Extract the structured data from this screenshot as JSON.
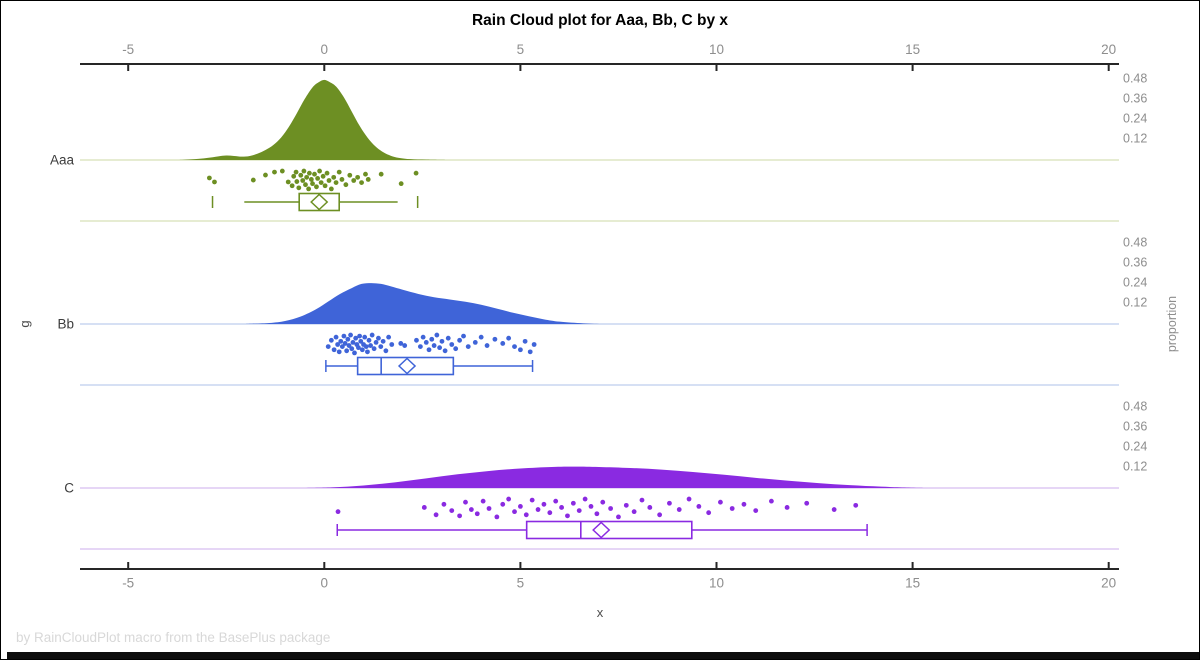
{
  "header": {
    "title": "Rain Cloud plot for Aaa, Bb, C by x"
  },
  "footer": {
    "credit": "by RainCloudPlot macro from the BasePlus package"
  },
  "axes": {
    "x": {
      "label": "x",
      "ticks": [
        "-5",
        "0",
        "5",
        "10",
        "15",
        "20"
      ],
      "tick_values": [
        -5,
        0,
        5,
        10,
        15,
        20
      ],
      "range": [
        -6.2,
        20.3
      ]
    },
    "y": {
      "label": "g"
    },
    "y2": {
      "label": "proportion",
      "ticks": [
        "0.48",
        "0.36",
        "0.24",
        "0.12"
      ],
      "tick_values": [
        0.48,
        0.36,
        0.24,
        0.12
      ]
    }
  },
  "chart_data": {
    "type": "raincloud",
    "title": "Rain Cloud plot for Aaa, Bb, C by x",
    "xlabel": "x",
    "ylabel": "g",
    "y2label": "proportion",
    "x_range": [
      -6.2,
      20.3
    ],
    "proportion_ticks": [
      0.48,
      0.36,
      0.24,
      0.12
    ],
    "groups": [
      {
        "label": "Aaa",
        "color": "#6d8f23",
        "light_color": "#dde6c4",
        "density": [
          [
            -3.7,
            0
          ],
          [
            -3.3,
            0.005
          ],
          [
            -3.0,
            0.012
          ],
          [
            -2.7,
            0.022
          ],
          [
            -2.5,
            0.027
          ],
          [
            -2.3,
            0.024
          ],
          [
            -2.1,
            0.02
          ],
          [
            -1.9,
            0.024
          ],
          [
            -1.7,
            0.038
          ],
          [
            -1.5,
            0.06
          ],
          [
            -1.3,
            0.09
          ],
          [
            -1.1,
            0.135
          ],
          [
            -0.9,
            0.2
          ],
          [
            -0.7,
            0.28
          ],
          [
            -0.5,
            0.365
          ],
          [
            -0.3,
            0.435
          ],
          [
            -0.15,
            0.465
          ],
          [
            0,
            0.48
          ],
          [
            0.15,
            0.465
          ],
          [
            0.3,
            0.44
          ],
          [
            0.5,
            0.375
          ],
          [
            0.7,
            0.29
          ],
          [
            0.9,
            0.205
          ],
          [
            1.1,
            0.135
          ],
          [
            1.3,
            0.082
          ],
          [
            1.5,
            0.047
          ],
          [
            1.7,
            0.025
          ],
          [
            1.9,
            0.013
          ],
          [
            2.2,
            0.005
          ],
          [
            2.6,
            0.002
          ],
          [
            3.1,
            0
          ]
        ],
        "points": [
          [
            -2.93,
            0.38
          ],
          [
            -2.8,
            0.57
          ],
          [
            -1.81,
            0.48
          ],
          [
            -1.5,
            0.24
          ],
          [
            -1.27,
            0.1
          ],
          [
            -1.07,
            0.05
          ],
          [
            -0.92,
            0.57
          ],
          [
            -0.82,
            0.75
          ],
          [
            -0.78,
            0.3
          ],
          [
            -0.72,
            0.1
          ],
          [
            -0.7,
            0.55
          ],
          [
            -0.65,
            0.85
          ],
          [
            -0.6,
            0.25
          ],
          [
            -0.55,
            0.5
          ],
          [
            -0.52,
            0.05
          ],
          [
            -0.48,
            0.7
          ],
          [
            -0.45,
            0.35
          ],
          [
            -0.4,
            0.9
          ],
          [
            -0.38,
            0.15
          ],
          [
            -0.33,
            0.45
          ],
          [
            -0.3,
            0.65
          ],
          [
            -0.25,
            0.2
          ],
          [
            -0.2,
            0.8
          ],
          [
            -0.17,
            0.4
          ],
          [
            -0.12,
            0.05
          ],
          [
            -0.08,
            0.6
          ],
          [
            -0.03,
            0.3
          ],
          [
            0.02,
            0.75
          ],
          [
            0.07,
            0.15
          ],
          [
            0.12,
            0.5
          ],
          [
            0.18,
            0.9
          ],
          [
            0.24,
            0.35
          ],
          [
            0.3,
            0.6
          ],
          [
            0.38,
            0.1
          ],
          [
            0.45,
            0.45
          ],
          [
            0.55,
            0.7
          ],
          [
            0.65,
            0.25
          ],
          [
            0.75,
            0.5
          ],
          [
            0.85,
            0.35
          ],
          [
            0.95,
            0.6
          ],
          [
            1.05,
            0.2
          ],
          [
            1.12,
            0.45
          ],
          [
            1.45,
            0.2
          ],
          [
            1.96,
            0.65
          ],
          [
            2.34,
            0.15
          ]
        ],
        "box": {
          "lo_cap": -2.85,
          "lo_line": -2.04,
          "q1": -0.64,
          "median": -0.14,
          "mean": -0.13,
          "q3": 0.38,
          "hi_line": 1.87,
          "hi_cap": 2.38
        }
      },
      {
        "label": "Bb",
        "color": "#3f64d8",
        "light_color": "#c9d5f0",
        "density": [
          [
            -2.0,
            0
          ],
          [
            -1.4,
            0.006
          ],
          [
            -1.0,
            0.018
          ],
          [
            -0.6,
            0.045
          ],
          [
            -0.2,
            0.09
          ],
          [
            0.1,
            0.135
          ],
          [
            0.4,
            0.18
          ],
          [
            0.7,
            0.215
          ],
          [
            0.95,
            0.24
          ],
          [
            1.2,
            0.245
          ],
          [
            1.45,
            0.24
          ],
          [
            1.7,
            0.225
          ],
          [
            2.0,
            0.205
          ],
          [
            2.4,
            0.18
          ],
          [
            2.8,
            0.16
          ],
          [
            3.2,
            0.147
          ],
          [
            3.6,
            0.133
          ],
          [
            4.0,
            0.115
          ],
          [
            4.4,
            0.092
          ],
          [
            4.8,
            0.068
          ],
          [
            5.2,
            0.047
          ],
          [
            5.6,
            0.028
          ],
          [
            6.0,
            0.014
          ],
          [
            6.6,
            0.004
          ],
          [
            7.1,
            0
          ]
        ],
        "points": [
          [
            0.1,
            0.6
          ],
          [
            0.18,
            0.3
          ],
          [
            0.25,
            0.75
          ],
          [
            0.3,
            0.15
          ],
          [
            0.34,
            0.5
          ],
          [
            0.38,
            0.85
          ],
          [
            0.42,
            0.35
          ],
          [
            0.46,
            0.6
          ],
          [
            0.5,
            0.1
          ],
          [
            0.53,
            0.45
          ],
          [
            0.57,
            0.8
          ],
          [
            0.6,
            0.25
          ],
          [
            0.63,
            0.55
          ],
          [
            0.67,
            0.05
          ],
          [
            0.7,
            0.7
          ],
          [
            0.73,
            0.4
          ],
          [
            0.77,
            0.9
          ],
          [
            0.8,
            0.2
          ],
          [
            0.83,
            0.5
          ],
          [
            0.87,
            0.65
          ],
          [
            0.9,
            0.1
          ],
          [
            0.93,
            0.35
          ],
          [
            0.97,
            0.75
          ],
          [
            1.0,
            0.5
          ],
          [
            1.03,
            0.15
          ],
          [
            1.07,
            0.6
          ],
          [
            1.1,
            0.85
          ],
          [
            1.14,
            0.3
          ],
          [
            1.18,
            0.55
          ],
          [
            1.22,
            0.05
          ],
          [
            1.27,
            0.7
          ],
          [
            1.32,
            0.4
          ],
          [
            1.38,
            0.2
          ],
          [
            1.44,
            0.6
          ],
          [
            1.5,
            0.35
          ],
          [
            1.57,
            0.8
          ],
          [
            1.64,
            0.15
          ],
          [
            1.72,
            0.5
          ],
          [
            1.95,
            0.45
          ],
          [
            2.05,
            0.55
          ],
          [
            2.35,
            0.3
          ],
          [
            2.45,
            0.6
          ],
          [
            2.52,
            0.15
          ],
          [
            2.6,
            0.4
          ],
          [
            2.67,
            0.75
          ],
          [
            2.74,
            0.25
          ],
          [
            2.8,
            0.55
          ],
          [
            2.87,
            0.05
          ],
          [
            2.94,
            0.65
          ],
          [
            3.0,
            0.35
          ],
          [
            3.08,
            0.8
          ],
          [
            3.16,
            0.2
          ],
          [
            3.25,
            0.5
          ],
          [
            3.35,
            0.7
          ],
          [
            3.45,
            0.3
          ],
          [
            3.55,
            0.1
          ],
          [
            3.67,
            0.6
          ],
          [
            3.85,
            0.4
          ],
          [
            4.0,
            0.15
          ],
          [
            4.15,
            0.55
          ],
          [
            4.35,
            0.25
          ],
          [
            4.55,
            0.45
          ],
          [
            4.7,
            0.2
          ],
          [
            4.85,
            0.6
          ],
          [
            5.0,
            0.75
          ],
          [
            5.12,
            0.35
          ],
          [
            5.25,
            0.85
          ],
          [
            5.35,
            0.5
          ]
        ],
        "box": {
          "lo_cap": 0.04,
          "lo_line": 0.04,
          "q1": 0.85,
          "median": 1.45,
          "mean": 2.11,
          "q3": 3.29,
          "hi_line": 5.31,
          "hi_cap": 5.31
        }
      },
      {
        "label": "C",
        "color": "#8a2ae1",
        "light_color": "#ddc8f4",
        "density": [
          [
            -0.6,
            0
          ],
          [
            0.2,
            0.004
          ],
          [
            1.0,
            0.015
          ],
          [
            1.8,
            0.034
          ],
          [
            2.6,
            0.058
          ],
          [
            3.4,
            0.082
          ],
          [
            4.2,
            0.102
          ],
          [
            5.0,
            0.117
          ],
          [
            5.8,
            0.126
          ],
          [
            6.4,
            0.128
          ],
          [
            7.0,
            0.126
          ],
          [
            7.8,
            0.12
          ],
          [
            8.6,
            0.11
          ],
          [
            9.4,
            0.096
          ],
          [
            10.2,
            0.079
          ],
          [
            11.0,
            0.061
          ],
          [
            11.8,
            0.044
          ],
          [
            12.6,
            0.029
          ],
          [
            13.4,
            0.017
          ],
          [
            14.2,
            0.008
          ],
          [
            14.9,
            0.002
          ],
          [
            15.3,
            0
          ]
        ],
        "points": [
          [
            0.35,
            0.65
          ],
          [
            2.55,
            0.45
          ],
          [
            2.85,
            0.8
          ],
          [
            3.05,
            0.3
          ],
          [
            3.25,
            0.6
          ],
          [
            3.45,
            0.85
          ],
          [
            3.6,
            0.2
          ],
          [
            3.75,
            0.55
          ],
          [
            3.9,
            0.75
          ],
          [
            4.05,
            0.15
          ],
          [
            4.2,
            0.5
          ],
          [
            4.4,
            0.9
          ],
          [
            4.55,
            0.3
          ],
          [
            4.7,
            0.05
          ],
          [
            4.85,
            0.65
          ],
          [
            5.0,
            0.4
          ],
          [
            5.15,
            0.8
          ],
          [
            5.3,
            0.1
          ],
          [
            5.45,
            0.55
          ],
          [
            5.6,
            0.3
          ],
          [
            5.75,
            0.7
          ],
          [
            5.9,
            0.15
          ],
          [
            6.05,
            0.45
          ],
          [
            6.2,
            0.85
          ],
          [
            6.35,
            0.25
          ],
          [
            6.5,
            0.6
          ],
          [
            6.65,
            0.05
          ],
          [
            6.8,
            0.4
          ],
          [
            6.95,
            0.75
          ],
          [
            7.1,
            0.2
          ],
          [
            7.3,
            0.5
          ],
          [
            7.5,
            0.9
          ],
          [
            7.7,
            0.35
          ],
          [
            7.9,
            0.65
          ],
          [
            8.1,
            0.1
          ],
          [
            8.3,
            0.45
          ],
          [
            8.55,
            0.8
          ],
          [
            8.8,
            0.25
          ],
          [
            9.05,
            0.55
          ],
          [
            9.3,
            0.05
          ],
          [
            9.55,
            0.4
          ],
          [
            9.8,
            0.7
          ],
          [
            10.1,
            0.2
          ],
          [
            10.4,
            0.5
          ],
          [
            10.7,
            0.3
          ],
          [
            11.0,
            0.6
          ],
          [
            11.4,
            0.15
          ],
          [
            11.8,
            0.45
          ],
          [
            12.3,
            0.25
          ],
          [
            13.0,
            0.55
          ],
          [
            13.55,
            0.35
          ]
        ],
        "box": {
          "lo_cap": 0.33,
          "lo_line": 0.33,
          "q1": 5.16,
          "median": 6.54,
          "mean": 7.06,
          "q3": 9.37,
          "hi_line": 13.84,
          "hi_cap": 13.84
        }
      }
    ]
  }
}
